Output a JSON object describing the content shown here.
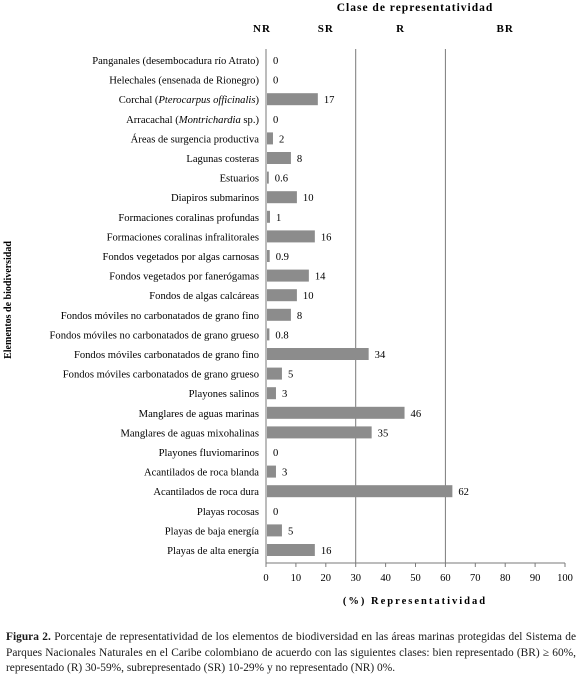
{
  "chart_data": {
    "type": "bar",
    "orientation": "horizontal",
    "title": "Clase de representatividad",
    "class_labels": [
      "NR",
      "SR",
      "R",
      "BR"
    ],
    "xlabel": "(%) Representatividad",
    "ylabel": "Elementos de biodiversidad",
    "xlim": [
      0,
      100
    ],
    "xticks": [
      "0",
      "10",
      "20",
      "30",
      "40",
      "50",
      "60",
      "70",
      "80",
      "90",
      "100"
    ],
    "class_boundaries": [
      0,
      30,
      60
    ],
    "bar_color": "#8c8c8c",
    "categories": [
      "Panganales (desembocadura río Atrato)",
      "Helechales (ensenada de Rionegro)",
      "Corchal (Pterocarpus officinalis)",
      "Arracachal (Montrichardia sp.)",
      "Áreas de surgencia productiva",
      "Lagunas costeras",
      "Estuarios",
      "Diapiros submarinos",
      "Formaciones coralinas profundas",
      "Formaciones coralinas infralitorales",
      "Fondos vegetados por algas carnosas",
      "Fondos vegetados por fanerógamas",
      "Fondos de algas calcáreas",
      "Fondos móviles no carbonatados de grano fino",
      "Fondos móviles no carbonatados de grano grueso",
      "Fondos móviles carbonatados de grano fino",
      "Fondos móviles carbonatados de grano grueso",
      "Playones salinos",
      "Manglares de aguas marinas",
      "Manglares de aguas mixohalinas",
      "Playones fluviomarinos",
      "Acantilados de roca blanda",
      "Acantilados de roca dura",
      "Playas rocosas",
      "Playas de baja energía",
      "Playas de alta energía"
    ],
    "values": [
      0,
      0,
      17,
      0,
      2,
      8,
      0.6,
      10,
      1,
      16,
      0.9,
      14,
      10,
      8,
      0.8,
      34,
      5,
      3,
      46,
      35,
      0,
      3,
      62,
      0,
      5,
      16
    ],
    "value_labels": [
      "0",
      "0",
      "17",
      "0",
      "2",
      "8",
      "0.6",
      "10",
      "1",
      "16",
      "0.9",
      "14",
      "10",
      "8",
      "0.8",
      "34",
      "5",
      "3",
      "46",
      "35",
      "0",
      "3",
      "62",
      "0",
      "5",
      "16"
    ]
  },
  "caption": {
    "label": "Figura 2.",
    "text": " Porcentaje de representatividad de los elementos de biodiversidad en las áreas marinas protegidas del Sistema de Parques Nacionales Naturales en el Caribe colombiano de acuerdo con las siguientes clases: bien representado (BR) ≥ 60%, representado (R) 30-59%, subrepresentado (SR) 10-29% y no representado (NR) 0%."
  }
}
